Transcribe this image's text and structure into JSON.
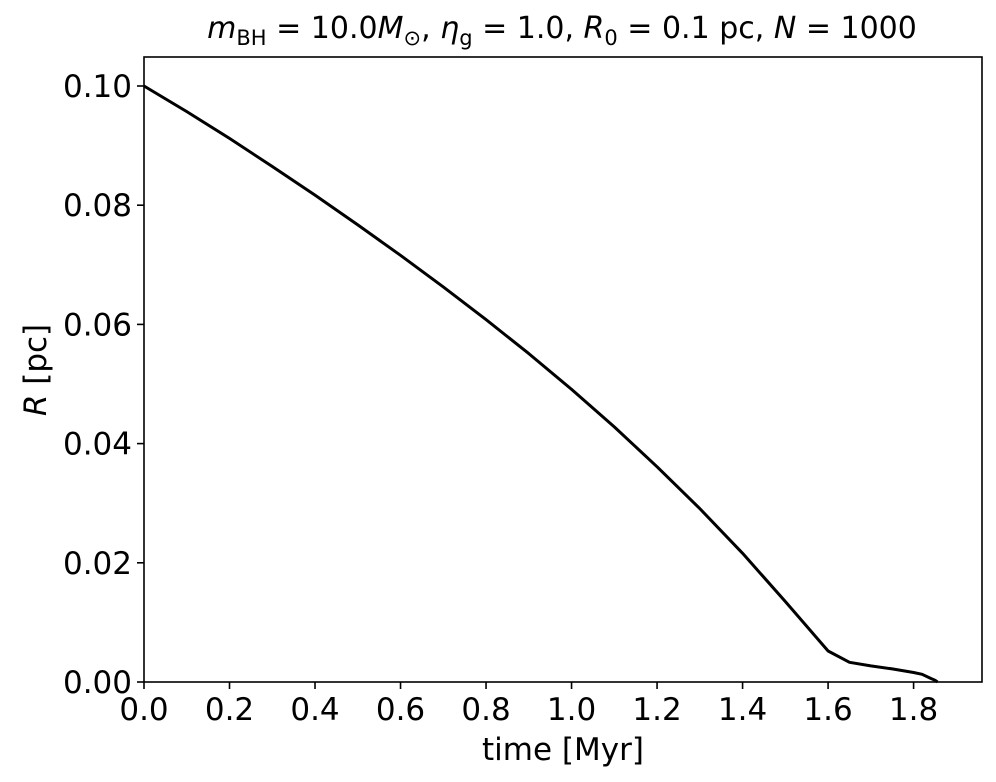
{
  "chart_data": {
    "type": "line",
    "title": {
      "m_sym": "m",
      "m_sub": "BH",
      "m_eq": " = 10.0",
      "M_sym": "M",
      "M_sub": "⊙",
      "sep1": ", ",
      "eta_sym": "η",
      "eta_sub": "g",
      "eta_eq": " = 1.0, ",
      "R_sym": "R",
      "R_sub": "0",
      "R_eq": " = 0.1 pc, ",
      "N_sym": "N",
      "N_eq": " = 1000"
    },
    "xlabel": "time [Myr]",
    "ylabel_sym": "R",
    "ylabel_unit": " [pc]",
    "xlim": [
      0.0,
      1.96
    ],
    "ylim": [
      0.0,
      0.105
    ],
    "xticks": [
      "0.0",
      "0.2",
      "0.4",
      "0.6",
      "0.8",
      "1.0",
      "1.2",
      "1.4",
      "1.6",
      "1.8"
    ],
    "yticks": [
      "0.00",
      "0.02",
      "0.04",
      "0.06",
      "0.08",
      "0.10"
    ],
    "grid": false,
    "series": [
      {
        "color": "#000000",
        "x": [
          0.0,
          0.1,
          0.2,
          0.3,
          0.4,
          0.5,
          0.6,
          0.7,
          0.8,
          0.9,
          1.0,
          1.1,
          1.2,
          1.3,
          1.4,
          1.5,
          1.6,
          1.65,
          1.7,
          1.75,
          1.8,
          1.82,
          1.84,
          1.85,
          1.856
        ],
        "y": [
          0.1,
          0.0957,
          0.0912,
          0.0865,
          0.0817,
          0.0767,
          0.0716,
          0.0663,
          0.0608,
          0.0551,
          0.0491,
          0.0428,
          0.0361,
          0.0291,
          0.0216,
          0.0135,
          0.0052,
          0.0033,
          0.0027,
          0.0022,
          0.0016,
          0.0013,
          0.0006,
          0.0003,
          0.0
        ]
      }
    ]
  }
}
